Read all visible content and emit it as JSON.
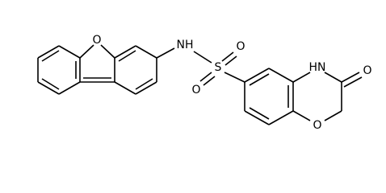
{
  "atoms": [
    {
      "label": "O"
    },
    {
      "label": "NH"
    },
    {
      "label": "S"
    },
    {
      "label": "O"
    },
    {
      "label": "O"
    },
    {
      "label": "HN"
    },
    {
      "label": "O"
    },
    {
      "label": "O"
    }
  ]
}
